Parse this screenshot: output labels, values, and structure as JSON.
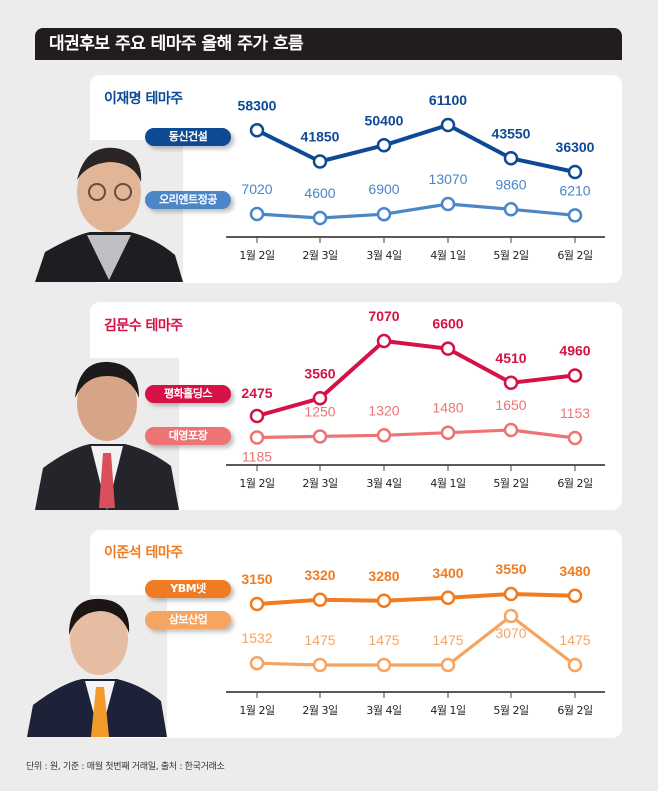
{
  "title": "대권후보 주요 테마주 올해 주가 흐름",
  "footer": "단위 : 원, 기준 : 매월 첫번째 거래일, 출처 : 한국거래소",
  "chart_data": [
    {
      "type": "line",
      "title": "이재명 테마주",
      "categories": [
        "1월 2일",
        "2월 3일",
        "3월 4일",
        "4월 1일",
        "5월 2일",
        "6월 2일"
      ],
      "series": [
        {
          "name": "동신건설",
          "values": [
            58300,
            41850,
            50400,
            61100,
            43550,
            36300
          ],
          "color": "#0e4a94"
        },
        {
          "name": "오리엔트정공",
          "values": [
            7020,
            4600,
            6900,
            13070,
            9860,
            6210
          ],
          "color": "#4c86c6"
        }
      ],
      "title_color": "#0e4a94"
    },
    {
      "type": "line",
      "title": "김문수 테마주",
      "categories": [
        "1월 2일",
        "2월 3일",
        "3월 4일",
        "4월 1일",
        "5월 2일",
        "6월 2일"
      ],
      "series": [
        {
          "name": "평화홀딩스",
          "values": [
            2475,
            3560,
            7070,
            6600,
            4510,
            4960
          ],
          "color": "#d51145"
        },
        {
          "name": "대영포장",
          "values": [
            1185,
            1250,
            1320,
            1480,
            1650,
            1153
          ],
          "color": "#ec7474"
        }
      ],
      "title_color": "#d51145"
    },
    {
      "type": "line",
      "title": "이준석 테마주",
      "categories": [
        "1월 2일",
        "2월 3일",
        "3월 4일",
        "4월 1일",
        "5월 2일",
        "6월 2일"
      ],
      "series": [
        {
          "name": "YBM넷",
          "values": [
            3150,
            3320,
            3280,
            3400,
            3550,
            3480
          ],
          "color": "#f07b22"
        },
        {
          "name": "삼보산업",
          "values": [
            1532,
            1475,
            1475,
            1475,
            3070,
            1475
          ],
          "color": "#f5a462"
        }
      ],
      "title_color": "#f07b22"
    }
  ]
}
